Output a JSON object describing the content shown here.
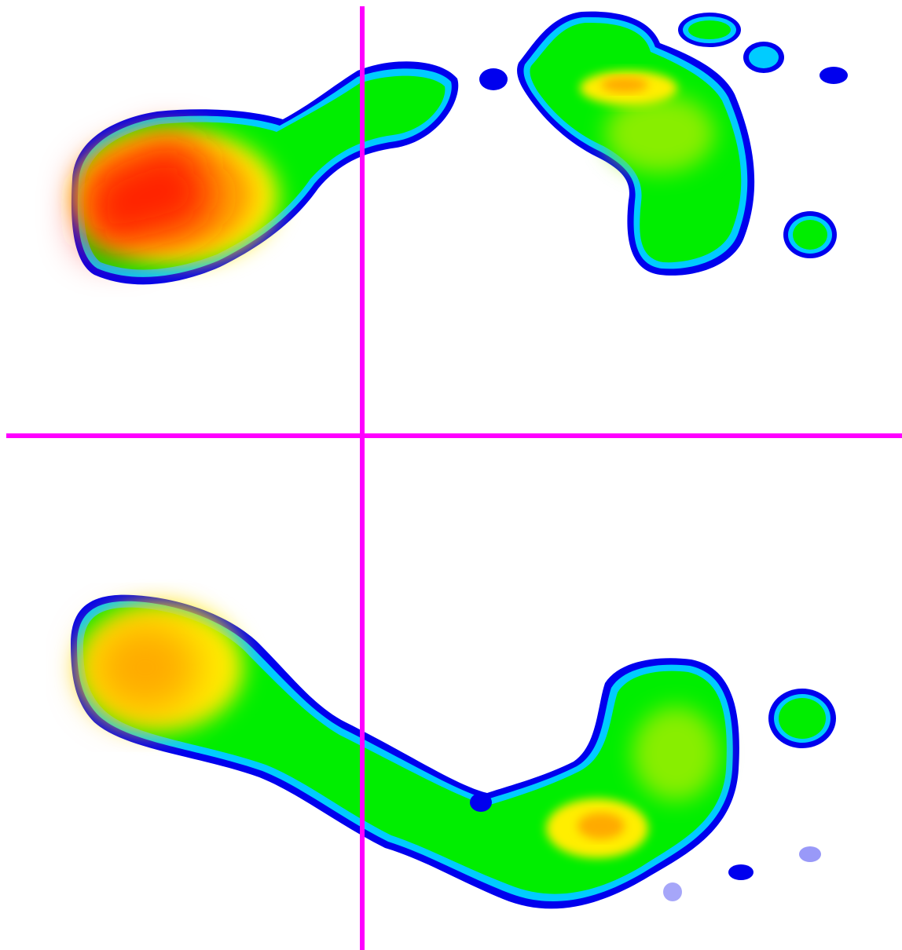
{
  "view": {
    "background_color": "#ffffff",
    "crosshair_color": "#ff00ff"
  },
  "heatmap_palette": {
    "outline": "#0000ee",
    "low": "#00ccff",
    "mid": "#00ee00",
    "mid_high": "#88ee00",
    "high": "#ffee00",
    "higher": "#ffaa00",
    "peak": "#ff2200"
  },
  "footprints": [
    {
      "foot": "left",
      "level_shown": "high"
    },
    {
      "foot": "right",
      "level_shown": "medium"
    }
  ]
}
